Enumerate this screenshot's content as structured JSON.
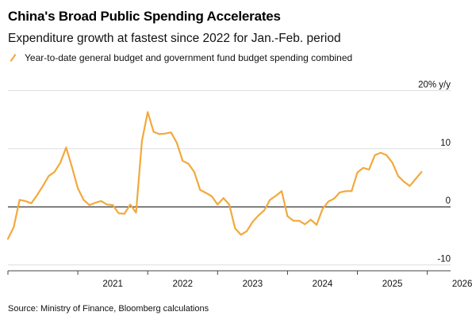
{
  "title": "China's Broad Public Spending Accelerates",
  "subtitle": "Expenditure growth at fastest since 2022 for Jan.-Feb. period",
  "source": "Source: Ministry of Finance, Bloomberg calculations",
  "colors": {
    "series": "#f2a93b",
    "grid": "#dddddd",
    "zero": "#000000"
  },
  "chart_data": {
    "type": "line",
    "title": "China's Broad Public Spending Accelerates",
    "subtitle": "Expenditure growth at fastest since 2022 for Jan.-Feb. period",
    "ylabel": "20% y/y",
    "ylim": [
      -11,
      21
    ],
    "yticks": [
      {
        "value": 20,
        "label": "20% y/y"
      },
      {
        "value": 10,
        "label": "10"
      },
      {
        "value": 0,
        "label": "0"
      },
      {
        "value": -10,
        "label": "-10"
      }
    ],
    "xlim": [
      "2020-01",
      "2026-05"
    ],
    "xticks": [
      "2021",
      "2022",
      "2023",
      "2024",
      "2025",
      "2026"
    ],
    "grid": "horizontal",
    "legend_position": "top-left",
    "series": [
      {
        "name": "Year-to-date general budget and government fund budget spending combined",
        "points": [
          [
            "2020-01",
            -5.5
          ],
          [
            "2020-02",
            -3.5
          ],
          [
            "2020-03",
            1.2
          ],
          [
            "2020-04",
            1.0
          ],
          [
            "2020-05",
            0.6
          ],
          [
            "2020-06",
            2.0
          ],
          [
            "2020-07",
            3.6
          ],
          [
            "2020-08",
            5.3
          ],
          [
            "2020-09",
            6.0
          ],
          [
            "2020-10",
            7.6
          ],
          [
            "2020-11",
            10.2
          ],
          [
            "2020-12",
            6.8
          ],
          [
            "2021-01",
            3.2
          ],
          [
            "2021-02",
            1.2
          ],
          [
            "2021-03",
            0.3
          ],
          [
            "2021-04",
            0.7
          ],
          [
            "2021-05",
            1.0
          ],
          [
            "2021-06",
            0.4
          ],
          [
            "2021-07",
            0.3
          ],
          [
            "2021-08",
            -1.1
          ],
          [
            "2021-09",
            -1.2
          ],
          [
            "2021-10",
            0.4
          ],
          [
            "2021-11",
            -1.0
          ],
          [
            "2021-12",
            11.3
          ],
          [
            "2022-01",
            16.3
          ],
          [
            "2022-02",
            12.9
          ],
          [
            "2022-03",
            12.5
          ],
          [
            "2022-04",
            12.6
          ],
          [
            "2022-05",
            12.8
          ],
          [
            "2022-06",
            11.0
          ],
          [
            "2022-07",
            7.9
          ],
          [
            "2022-08",
            7.4
          ],
          [
            "2022-09",
            6.0
          ],
          [
            "2022-10",
            2.9
          ],
          [
            "2022-11",
            2.4
          ],
          [
            "2022-12",
            1.8
          ],
          [
            "2023-01",
            0.4
          ],
          [
            "2023-02",
            1.5
          ],
          [
            "2023-03",
            0.4
          ],
          [
            "2023-04",
            -3.7
          ],
          [
            "2023-05",
            -4.8
          ],
          [
            "2023-06",
            -4.2
          ],
          [
            "2023-07",
            -2.6
          ],
          [
            "2023-08",
            -1.5
          ],
          [
            "2023-09",
            -0.6
          ],
          [
            "2023-10",
            1.2
          ],
          [
            "2023-11",
            1.9
          ],
          [
            "2023-12",
            2.7
          ],
          [
            "2024-01",
            -1.6
          ],
          [
            "2024-02",
            -2.4
          ],
          [
            "2024-03",
            -2.4
          ],
          [
            "2024-04",
            -3.0
          ],
          [
            "2024-05",
            -2.2
          ],
          [
            "2024-06",
            -3.1
          ],
          [
            "2024-07",
            -0.4
          ],
          [
            "2024-08",
            0.9
          ],
          [
            "2024-09",
            1.4
          ],
          [
            "2024-10",
            2.5
          ],
          [
            "2024-11",
            2.7
          ],
          [
            "2024-12",
            2.7
          ],
          [
            "2025-01",
            5.9
          ],
          [
            "2025-02",
            6.7
          ],
          [
            "2025-03",
            6.4
          ],
          [
            "2025-04",
            8.9
          ],
          [
            "2025-05",
            9.3
          ],
          [
            "2025-06",
            8.9
          ],
          [
            "2025-07",
            7.6
          ],
          [
            "2025-08",
            5.3
          ],
          [
            "2025-09",
            4.3
          ],
          [
            "2025-10",
            3.6
          ],
          [
            "2025-12",
            6.0
          ]
        ]
      }
    ]
  }
}
